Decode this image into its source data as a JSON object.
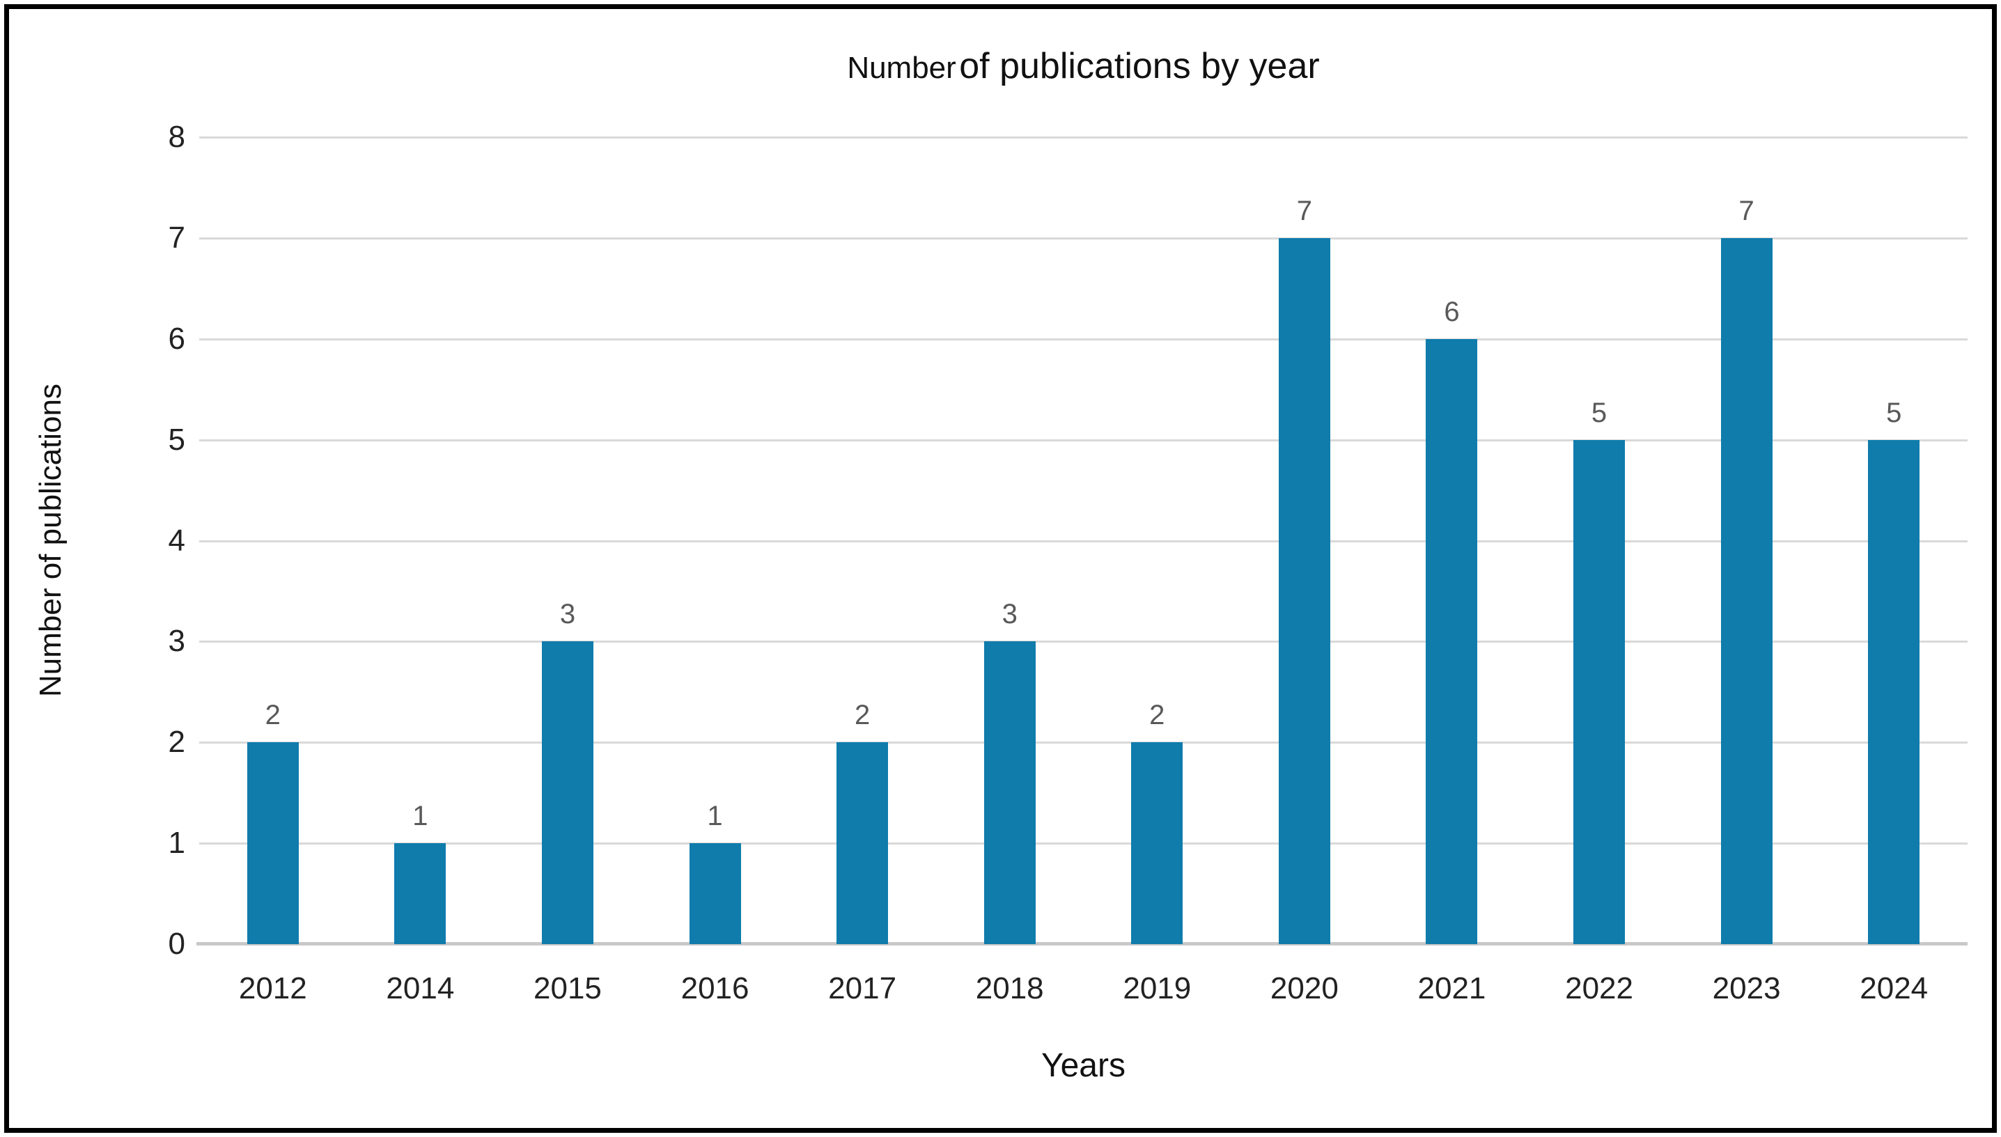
{
  "chart_data": {
    "type": "bar",
    "title": "Number of publications by year",
    "title_segments": {
      "small": "Number",
      "large": "of publications by year"
    },
    "categories": [
      "2012",
      "2014",
      "2015",
      "2016",
      "2017",
      "2018",
      "2019",
      "2020",
      "2021",
      "2022",
      "2023",
      "2024"
    ],
    "values": [
      2,
      1,
      3,
      1,
      2,
      3,
      2,
      7,
      6,
      5,
      7,
      5
    ],
    "xlabel": "Years",
    "ylabel": "Number of publications",
    "ylim": [
      0,
      8
    ],
    "yticks": [
      0,
      1,
      2,
      3,
      4,
      5,
      6,
      7,
      8
    ],
    "grid": true,
    "legend": false,
    "data_labels": true,
    "colors": {
      "bar": "#0f7cac",
      "gridline": "#d9d9d9",
      "axis_line": "#c9c9c9",
      "data_label": "#595959",
      "tick_label": "#222222",
      "frame_border": "#000000"
    }
  }
}
